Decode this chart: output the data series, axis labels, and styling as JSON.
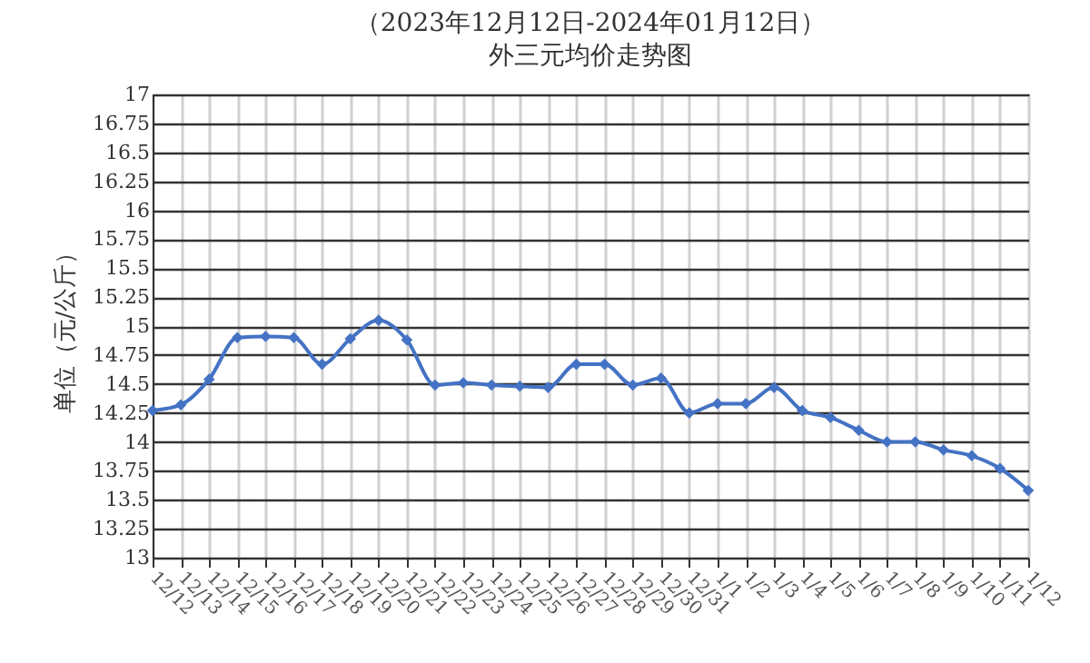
{
  "chart_data": {
    "type": "line",
    "title": "（2023年12月12日-2024年01月12日）",
    "subtitle": "外三元均价走势图",
    "ylabel": "单位（元/公斤）",
    "categories": [
      "12/12",
      "12/13",
      "12/14",
      "12/15",
      "12/16",
      "12/17",
      "12/18",
      "12/19",
      "12/20",
      "12/21",
      "12/22",
      "12/23",
      "12/24",
      "12/25",
      "12/26",
      "12/27",
      "12/28",
      "12/29",
      "12/30",
      "12/31",
      "1/1",
      "1/2",
      "1/3",
      "1/4",
      "1/5",
      "1/6",
      "1/7",
      "1/8",
      "1/9",
      "1/10",
      "1/11",
      "1/12"
    ],
    "series": [
      {
        "color": "#4472c4",
        "values": [
          14.27,
          14.32,
          14.54,
          14.9,
          14.91,
          14.9,
          14.67,
          14.89,
          15.05,
          14.88,
          14.49,
          14.51,
          14.49,
          14.48,
          14.47,
          14.67,
          14.67,
          14.49,
          14.55,
          14.25,
          14.33,
          14.33,
          14.47,
          14.27,
          14.21,
          14.1,
          14.0,
          14.0,
          13.93,
          13.88,
          13.77,
          13.58
        ]
      }
    ],
    "ylim": [
      13,
      17
    ],
    "yticks": [
      13,
      13.25,
      13.5,
      13.75,
      14,
      14.25,
      14.5,
      14.75,
      15,
      15.25,
      15.5,
      15.75,
      16,
      16.25,
      16.5,
      16.75,
      17
    ],
    "grid": true,
    "legend": false,
    "marker": "diamond",
    "line_style": "solid"
  }
}
